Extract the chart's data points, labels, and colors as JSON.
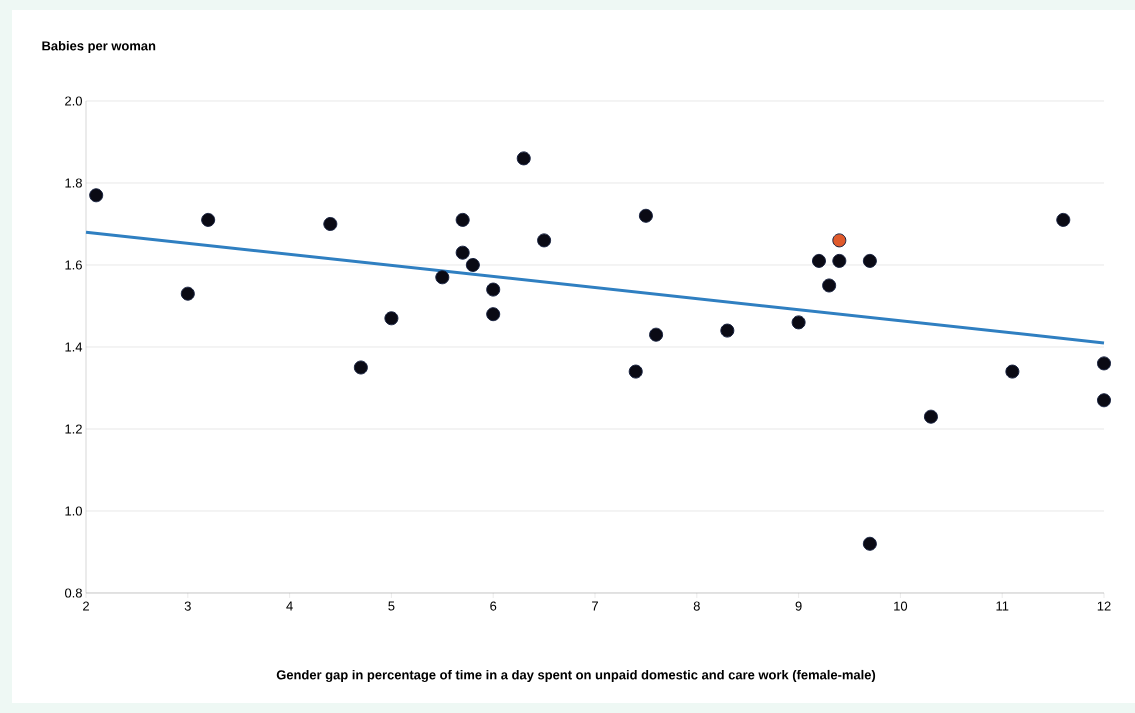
{
  "chart_data": {
    "type": "scatter",
    "xlabel": "Gender gap in percentage of time in a day spent on unpaid domestic and care work (female-male)",
    "ylabel": "Babies per woman",
    "xlim": [
      2,
      12
    ],
    "ylim": [
      0.8,
      2.0
    ],
    "xticks": [
      2,
      3,
      4,
      5,
      6,
      7,
      8,
      9,
      10,
      11,
      12
    ],
    "yticks": [
      {
        "value": 0.8,
        "label": "0.8"
      },
      {
        "value": 1.0,
        "label": "1.0"
      },
      {
        "value": 1.2,
        "label": "1.2"
      },
      {
        "value": 1.4,
        "label": "1.4"
      },
      {
        "value": 1.6,
        "label": "1.6"
      },
      {
        "value": 1.8,
        "label": "1.8"
      },
      {
        "value": 2.0,
        "label": "2.0"
      }
    ],
    "grid": "y",
    "series": [
      {
        "marker": "circle",
        "color": "#0a0a14",
        "x": [
          2.1,
          3.0,
          3.2,
          4.4,
          4.7,
          5.0,
          5.5,
          5.7,
          5.7,
          5.8,
          6.0,
          6.0,
          6.3,
          6.5,
          7.4,
          7.5,
          7.6,
          8.3,
          9.0,
          9.2,
          9.3,
          9.4,
          9.7,
          9.7,
          10.3,
          11.1,
          11.6,
          12.0,
          12.0
        ],
        "values": [
          1.77,
          1.53,
          1.71,
          1.7,
          1.35,
          1.47,
          1.57,
          1.71,
          1.63,
          1.6,
          1.54,
          1.48,
          1.86,
          1.66,
          1.34,
          1.72,
          1.43,
          1.44,
          1.46,
          1.61,
          1.55,
          1.61,
          1.61,
          0.92,
          1.23,
          1.34,
          1.71,
          1.36,
          1.27
        ]
      },
      {
        "marker": "circle",
        "color": "#e05a2b",
        "x": [
          9.4
        ],
        "values": [
          1.66
        ]
      },
      {
        "type": "line",
        "marker": "none",
        "color": "#2f7fc1",
        "x": [
          2,
          12
        ],
        "values": [
          1.68,
          1.41
        ]
      }
    ]
  }
}
